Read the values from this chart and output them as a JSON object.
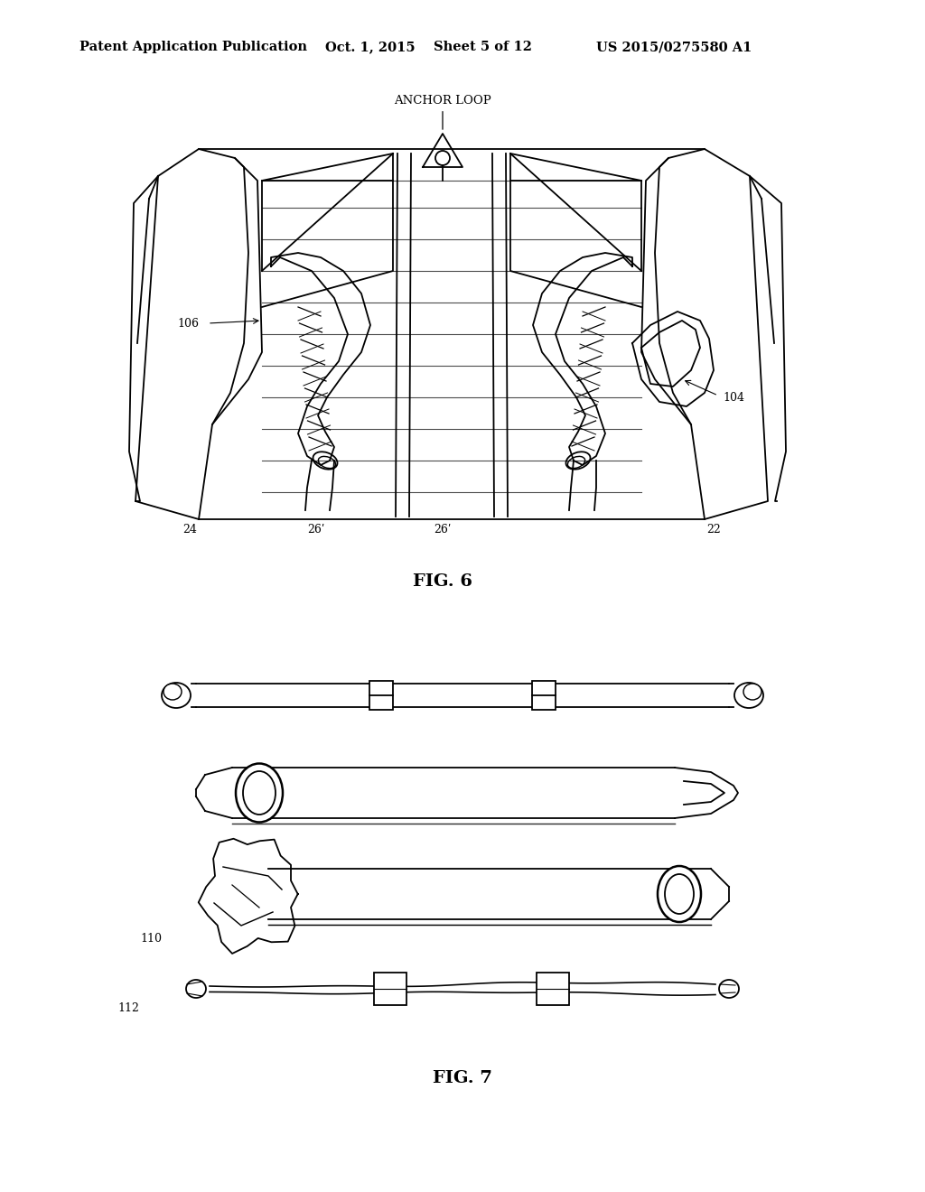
{
  "background_color": "#ffffff",
  "header_line1": "Patent Application Publication",
  "header_date": "Oct. 1, 2015",
  "header_sheet": "Sheet 5 of 12",
  "header_patent": "US 2015/0275580 A1",
  "fig6_label": "FIG. 6",
  "fig7_label": "FIG. 7",
  "text_color": "#000000",
  "line_color": "#000000",
  "font_size_header": 10.5,
  "font_size_labels": 9,
  "font_size_fig": 14
}
